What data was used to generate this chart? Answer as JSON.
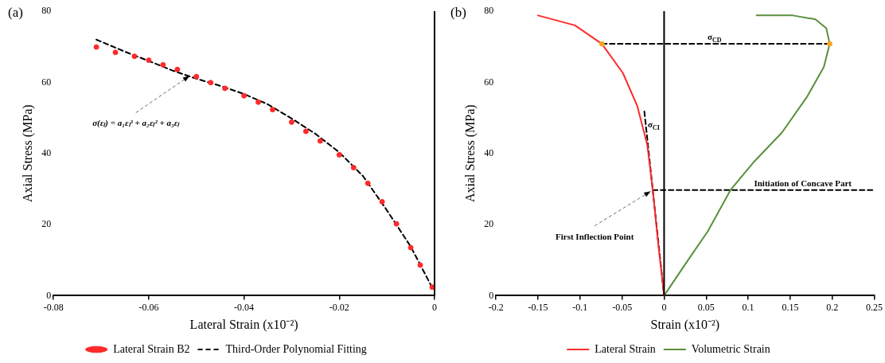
{
  "chart_data": [
    {
      "type": "line",
      "title": "(a)",
      "xlabel": "Lateral Strain (x10⁻²)",
      "ylabel": "Axial Stress (MPa)",
      "xlim": [
        -0.08,
        0
      ],
      "xticks": [
        -0.08,
        -0.06,
        -0.04,
        -0.02,
        0
      ],
      "ylim": [
        0,
        80
      ],
      "yticks": [
        0,
        20,
        40,
        60,
        80
      ],
      "legend": "bottom",
      "annotations": [
        {
          "text": "σ(εₗ) = a₁εₗ³ + a₂εₗ² + a₃εₗ",
          "x": -0.051,
          "y": 62.2
        }
      ],
      "series": [
        {
          "name": "Lateral Strain B2",
          "type": "scatter",
          "marker": "circle",
          "color": "#ff2a2a",
          "x": [
            -0.071,
            -0.067,
            -0.063,
            -0.06,
            -0.057,
            -0.054,
            -0.05,
            -0.047,
            -0.044,
            -0.04,
            -0.037,
            -0.034,
            -0.03,
            -0.027,
            -0.024,
            -0.02,
            -0.017,
            -0.014,
            -0.011,
            -0.008,
            -0.005,
            -0.003,
            -0.0005
          ],
          "values": [
            69.9,
            68.4,
            67.3,
            66.2,
            64.9,
            63.6,
            61.6,
            59.9,
            58.3,
            56.2,
            54.4,
            52.3,
            48.8,
            46.2,
            43.5,
            39.6,
            36.0,
            31.6,
            26.4,
            20.2,
            13.5,
            8.6,
            2.4
          ]
        },
        {
          "name": "Third-Order Polynomial Fitting",
          "type": "line",
          "line_style": "dashed",
          "color": "#000000",
          "x": [
            -0.071,
            -0.065,
            -0.06,
            -0.055,
            -0.05,
            -0.045,
            -0.04,
            -0.035,
            -0.03,
            -0.025,
            -0.02,
            -0.015,
            -0.01,
            -0.005,
            -0.0007
          ],
          "values": [
            72.0,
            68.6,
            66.0,
            63.3,
            61.0,
            59.0,
            56.7,
            53.8,
            49.8,
            45.5,
            40.3,
            33.6,
            24.0,
            13.8,
            2.8
          ]
        }
      ]
    },
    {
      "type": "line",
      "title": "(b)",
      "xlabel": "Strain (x10⁻²)",
      "ylabel": "Axial Stress (MPa)",
      "xlim": [
        -0.2,
        0.25
      ],
      "xticks": [
        -0.2,
        -0.15,
        -0.1,
        -0.05,
        0,
        0.05,
        0.1,
        0.15,
        0.2,
        0.25
      ],
      "ylim": [
        0,
        80
      ],
      "yticks": [
        0,
        20,
        40,
        60,
        80
      ],
      "legend": "bottom",
      "annotations": [
        {
          "text": "σ$_{CD}$",
          "x": 0.06,
          "y": 70.8
        },
        {
          "text": "σ$_{CI}$",
          "x": -0.0217,
          "y": 47.9
        },
        {
          "text": "Initiation of Concave Part",
          "x": 0.165,
          "y": 29.7
        },
        {
          "text": "First Inflection Point",
          "x": -0.0135,
          "y": 29.7
        }
      ],
      "series": [
        {
          "name": "Lateral Strain",
          "color": "#ff2a2a",
          "x": [
            -0.15,
            -0.106,
            -0.074,
            -0.049,
            -0.032,
            -0.02,
            -0.0135,
            -0.0067,
            0
          ],
          "values": [
            78.8,
            76.0,
            70.8,
            62.6,
            53.4,
            42.4,
            29.7,
            13.9,
            0
          ]
        },
        {
          "name": "Volumetric Strain",
          "color": "#5a8f3c",
          "x": [
            0,
            0.025,
            0.052,
            0.079,
            0.106,
            0.14,
            0.17,
            0.19,
            0.197,
            0.193,
            0.18,
            0.153,
            0.11
          ],
          "values": [
            0,
            8.8,
            18.1,
            29.7,
            37.4,
            45.8,
            55.9,
            64.3,
            70.8,
            75.2,
            77.7,
            78.8,
            78.8
          ]
        },
        {
          "line_style": "dashed",
          "color": "#000000",
          "x": [
            -0.0235,
            0
          ],
          "values": [
            51.8,
            0
          ]
        },
        {
          "line_style": "dashed",
          "color": "#000000",
          "x": [
            -0.074,
            0.197
          ],
          "values": [
            70.8,
            70.8
          ]
        },
        {
          "line_style": "dashed",
          "color": "#000000",
          "x": [
            -0.0135,
            0.25
          ],
          "values": [
            29.7,
            29.7
          ]
        },
        {
          "type": "scatter",
          "marker": "circle",
          "color": "#f5a623",
          "x": [
            -0.074,
            0.197
          ],
          "values": [
            70.8,
            70.8
          ]
        }
      ]
    }
  ]
}
